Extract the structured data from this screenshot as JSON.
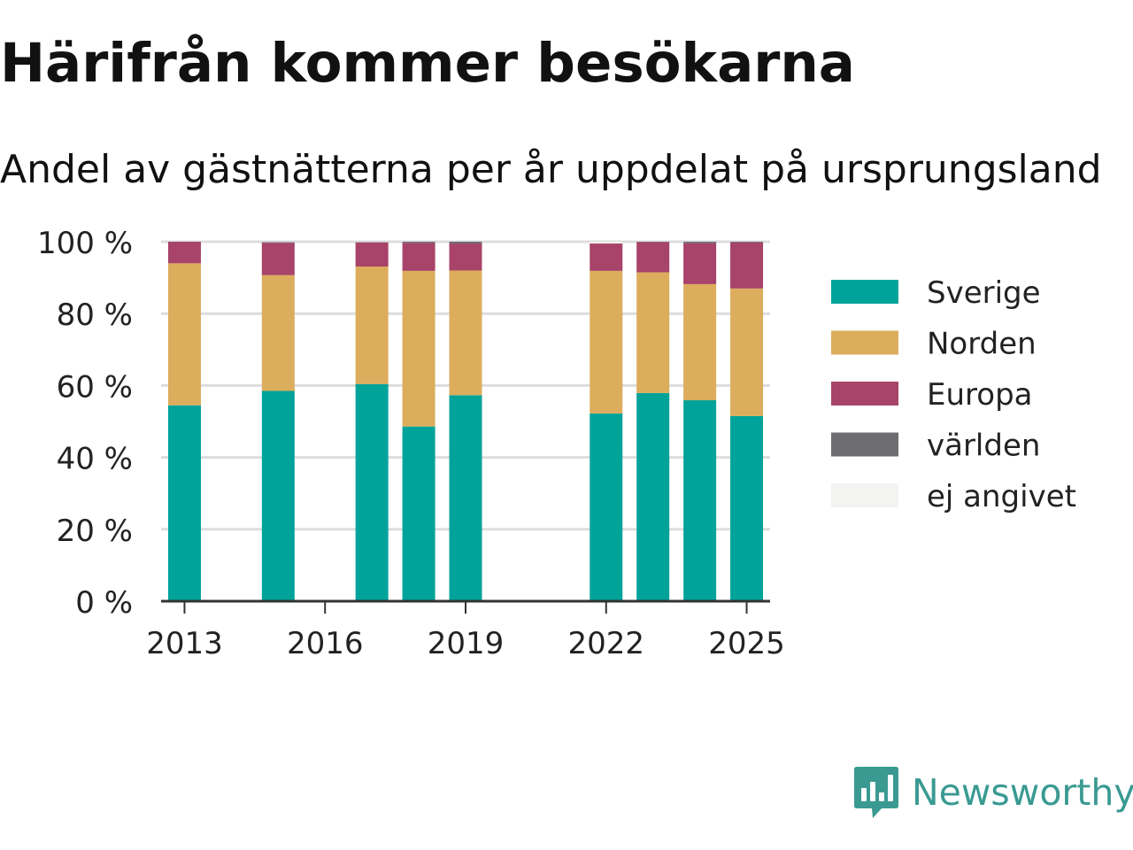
{
  "chart_data": {
    "type": "bar",
    "stacked": true,
    "title": "Härifrån kommer besökarna",
    "subtitle": "Andel av gästnätterna per år uppdelat på ursprungsland",
    "x": [
      2013,
      2015,
      2017,
      2018,
      2019,
      2022,
      2023,
      2024,
      2025
    ],
    "x_ticks": [
      "2013",
      "2016",
      "2019",
      "2022",
      "2025"
    ],
    "x_range": [
      2012.5,
      2025.5
    ],
    "y_ticks": [
      "0 %",
      "20 %",
      "40 %",
      "60 %",
      "80 %",
      "100 %"
    ],
    "y_unit": "%",
    "ylim": [
      0,
      100
    ],
    "grid": true,
    "legend_position": "right",
    "series": [
      {
        "name": "Sverige",
        "color": "#00a39a",
        "values": [
          54.5,
          58.5,
          60.4,
          48.6,
          57.3,
          52.2,
          57.9,
          55.9,
          51.5
        ]
      },
      {
        "name": "Norden",
        "color": "#dcad5c",
        "values": [
          39.5,
          32.2,
          32.7,
          43.3,
          34.7,
          39.7,
          33.6,
          32.3,
          35.5
        ]
      },
      {
        "name": "Europa",
        "color": "#a84369",
        "values": [
          6.0,
          9.0,
          6.7,
          7.8,
          7.5,
          7.6,
          8.4,
          11.4,
          12.8
        ]
      },
      {
        "name": "världen",
        "color": "#6d6d72",
        "values": [
          0.0,
          0.2,
          0.1,
          0.3,
          0.5,
          0.0,
          0.1,
          0.4,
          0.2
        ]
      },
      {
        "name": "ej angivet",
        "color": "#f3f3f1",
        "values": [
          0.0,
          0.1,
          0.1,
          0.0,
          0.0,
          0.5,
          0.0,
          0.0,
          0.0
        ]
      }
    ]
  },
  "brand": {
    "name": "Newsworthy",
    "color": "#3a9a92",
    "icon": "newsworthy-logo-icon"
  }
}
